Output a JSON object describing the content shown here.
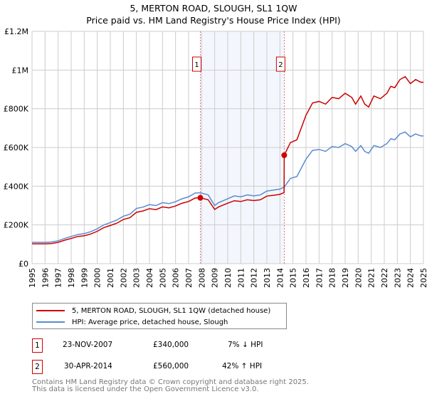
{
  "chart_data": {
    "type": "line",
    "title": "5, MERTON ROAD, SLOUGH, SL1 1QW",
    "subtitle": "Price paid vs. HM Land Registry's House Price Index (HPI)",
    "xlim": [
      1995,
      2025
    ],
    "ylim": [
      0,
      1200000
    ],
    "x_ticks": [
      "1995",
      "1996",
      "1997",
      "1998",
      "1999",
      "2000",
      "2001",
      "2002",
      "2003",
      "2004",
      "2005",
      "2006",
      "2007",
      "2008",
      "2009",
      "2010",
      "2011",
      "2012",
      "2013",
      "2014",
      "2015",
      "2016",
      "2017",
      "2018",
      "2019",
      "2020",
      "2021",
      "2022",
      "2023",
      "2024",
      "2025"
    ],
    "y_ticks": [
      {
        "v": 0,
        "label": "£0"
      },
      {
        "v": 200000,
        "label": "£200K"
      },
      {
        "v": 400000,
        "label": "£400K"
      },
      {
        "v": 600000,
        "label": "£600K"
      },
      {
        "v": 800000,
        "label": "£800K"
      },
      {
        "v": 1000000,
        "label": "£1M"
      },
      {
        "v": 1200000,
        "label": "£1.2M"
      }
    ],
    "grid": true,
    "shaded_range": [
      2007.9,
      2014.33
    ],
    "series": [
      {
        "name": "5, MERTON ROAD, SLOUGH, SL1 1QW (detached house)",
        "color": "#cc0000",
        "x": [
          1995,
          1996,
          1996.5,
          1997,
          1997.5,
          1998,
          1998.5,
          1999,
          1999.5,
          2000,
          2000.5,
          2001,
          2001.5,
          2002,
          2002.5,
          2003,
          2003.5,
          2004,
          2004.5,
          2005,
          2005.5,
          2006,
          2006.5,
          2007,
          2007.5,
          2007.9,
          2008.5,
          2009,
          2009.3,
          2010,
          2010.5,
          2011,
          2011.5,
          2012,
          2012.5,
          2013,
          2013.5,
          2014,
          2014.32,
          2014.33,
          2014.8,
          2015.3,
          2016,
          2016.5,
          2017,
          2017.5,
          2018,
          2018.5,
          2019,
          2019.5,
          2019.8,
          2020.2,
          2020.5,
          2020.8,
          2021.2,
          2021.7,
          2022.2,
          2022.5,
          2022.8,
          2023.2,
          2023.6,
          2024,
          2024.4,
          2024.8,
          2025
        ],
        "y": [
          102,
          102,
          104,
          110,
          121,
          130,
          140,
          144,
          153,
          167,
          186,
          197,
          209,
          228,
          237,
          265,
          272,
          284,
          279,
          293,
          288,
          298,
          312,
          321,
          339,
          340,
          330,
          280,
          293,
          312,
          325,
          321,
          330,
          326,
          330,
          349,
          353,
          358,
          367,
          560,
          625,
          640,
          767,
          830,
          838,
          824,
          859,
          852,
          880,
          859,
          824,
          866,
          824,
          809,
          866,
          852,
          880,
          916,
          909,
          951,
          966,
          930,
          951,
          937,
          937
        ],
        "y_unit": "thousand GBP"
      },
      {
        "name": "HPI: Average price, detached house, Slough",
        "color": "#5b8bd0",
        "x": [
          1995,
          1996,
          1996.5,
          1997,
          1997.5,
          1998,
          1998.5,
          1999,
          1999.5,
          2000,
          2000.5,
          2001,
          2001.5,
          2002,
          2002.5,
          2003,
          2003.5,
          2004,
          2004.5,
          2005,
          2005.5,
          2006,
          2006.5,
          2007,
          2007.5,
          2007.9,
          2008.5,
          2009,
          2009.3,
          2010,
          2010.5,
          2011,
          2011.5,
          2012,
          2012.5,
          2013,
          2013.5,
          2014,
          2014.33,
          2014.8,
          2015.3,
          2016,
          2016.5,
          2017,
          2017.5,
          2018,
          2018.5,
          2019,
          2019.5,
          2019.8,
          2020.2,
          2020.5,
          2020.8,
          2021.2,
          2021.7,
          2022.2,
          2022.5,
          2022.8,
          2023.2,
          2023.6,
          2024,
          2024.4,
          2024.8,
          2025
        ],
        "y": [
          110,
          110,
          112,
          118,
          130,
          140,
          150,
          155,
          165,
          180,
          200,
          212,
          225,
          245,
          255,
          285,
          292,
          305,
          300,
          315,
          310,
          320,
          335,
          345,
          365,
          366,
          355,
          300,
          315,
          335,
          350,
          345,
          355,
          350,
          355,
          375,
          380,
          385,
          395,
          440,
          450,
          540,
          585,
          590,
          580,
          605,
          600,
          620,
          605,
          580,
          610,
          580,
          570,
          610,
          600,
          620,
          645,
          640,
          670,
          680,
          655,
          670,
          660,
          660
        ],
        "y_unit": "thousand GBP"
      }
    ],
    "sales": [
      {
        "id": "1",
        "x": 2007.9,
        "price": 340000
      },
      {
        "id": "2",
        "x": 2014.33,
        "price": 560000
      }
    ]
  },
  "legend": {
    "red": "5, MERTON ROAD, SLOUGH, SL1 1QW (detached house)",
    "blue": "HPI: Average price, detached house, Slough"
  },
  "transactions": [
    {
      "id": "1",
      "date": "23-NOV-2007",
      "price": "£340,000",
      "hpi": "7% ↓ HPI"
    },
    {
      "id": "2",
      "date": "30-APR-2014",
      "price": "£560,000",
      "hpi": "42% ↑ HPI"
    }
  ],
  "footer": {
    "line1": "Contains HM Land Registry data © Crown copyright and database right 2025.",
    "line2": "This data is licensed under the Open Government Licence v3.0."
  }
}
